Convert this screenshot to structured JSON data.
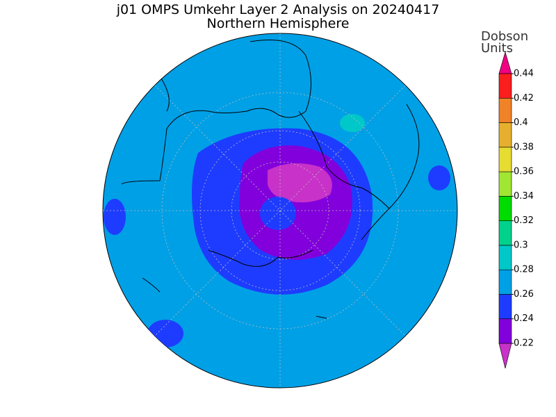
{
  "header": {
    "title": "j01 OMPS Umkehr Layer 2 Analysis on 20240417",
    "subtitle": "Northern Hemisphere"
  },
  "colorbar": {
    "label_lines": [
      "Dobson",
      "Units"
    ],
    "ticks": [
      0.22,
      0.24,
      0.26,
      0.28,
      0.3,
      0.32,
      0.34,
      0.36,
      0.38,
      0.4,
      0.42,
      0.44
    ],
    "colors": [
      "#c832c8",
      "#8200dc",
      "#1e3cff",
      "#00a0e6",
      "#00c8c8",
      "#00d28c",
      "#00dc00",
      "#a0e632",
      "#e6dc32",
      "#e6af2d",
      "#f08228",
      "#fa1e1e",
      "#f00082"
    ]
  }
}
